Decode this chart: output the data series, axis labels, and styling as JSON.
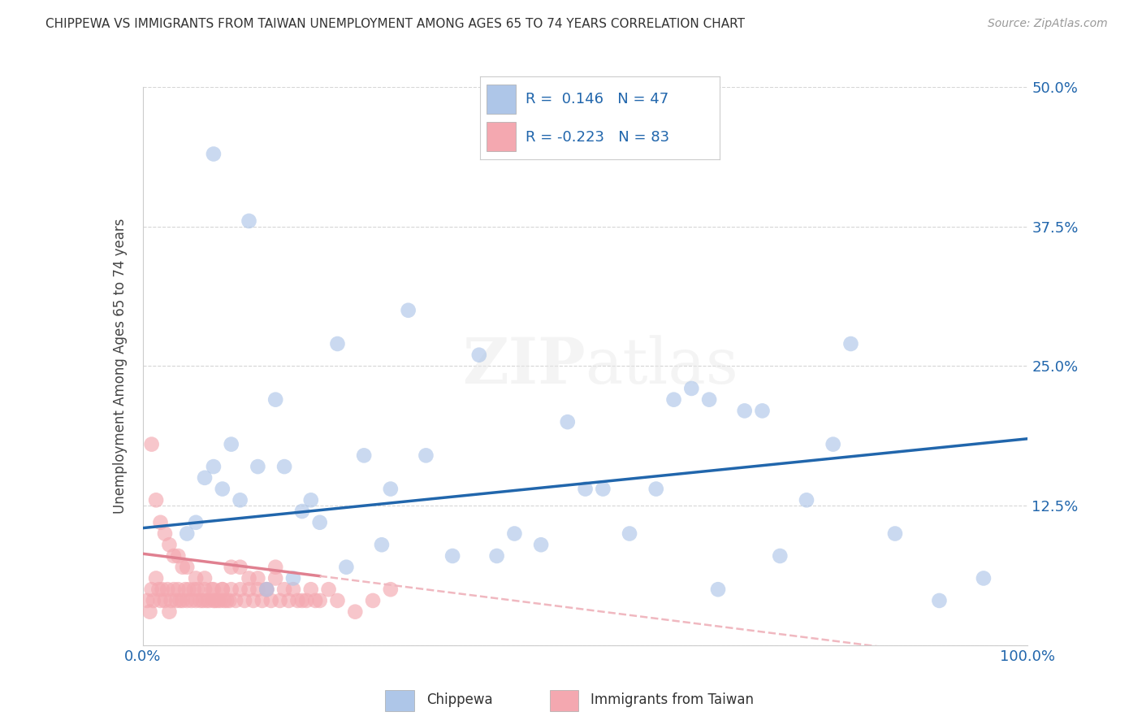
{
  "title": "CHIPPEWA VS IMMIGRANTS FROM TAIWAN UNEMPLOYMENT AMONG AGES 65 TO 74 YEARS CORRELATION CHART",
  "source": "Source: ZipAtlas.com",
  "ylabel": "Unemployment Among Ages 65 to 74 years",
  "xlim": [
    0.0,
    1.0
  ],
  "ylim": [
    0.0,
    0.5
  ],
  "xticks": [
    0.0,
    0.25,
    0.5,
    0.75,
    1.0
  ],
  "xticklabels": [
    "0.0%",
    "",
    "",
    "",
    "100.0%"
  ],
  "yticks": [
    0.0,
    0.125,
    0.25,
    0.375,
    0.5
  ],
  "yticklabels": [
    "",
    "12.5%",
    "25.0%",
    "37.5%",
    "50.0%"
  ],
  "grid_color": "#cccccc",
  "background_color": "#ffffff",
  "chippewa_color": "#aec6e8",
  "taiwan_color": "#f4a8b0",
  "chippewa_line_color": "#2166ac",
  "taiwan_line_color": "#e08090",
  "taiwan_line_dashed_color": "#f0b8c0",
  "legend_R1": "0.146",
  "legend_N1": "47",
  "legend_R2": "-0.223",
  "legend_N2": "83",
  "chippewa_scatter_x": [
    0.08,
    0.12,
    0.3,
    0.15,
    0.1,
    0.07,
    0.22,
    0.18,
    0.06,
    0.25,
    0.13,
    0.09,
    0.11,
    0.2,
    0.14,
    0.32,
    0.28,
    0.38,
    0.5,
    0.6,
    0.62,
    0.7,
    0.8,
    0.9,
    0.95,
    0.45,
    0.55,
    0.65,
    0.75,
    0.85,
    0.4,
    0.35,
    0.42,
    0.48,
    0.52,
    0.58,
    0.68,
    0.78,
    0.17,
    0.19,
    0.23,
    0.05,
    0.27,
    0.64,
    0.72,
    0.08,
    0.16
  ],
  "chippewa_scatter_y": [
    0.44,
    0.38,
    0.3,
    0.22,
    0.18,
    0.15,
    0.27,
    0.12,
    0.11,
    0.17,
    0.16,
    0.14,
    0.13,
    0.11,
    0.05,
    0.17,
    0.14,
    0.26,
    0.14,
    0.22,
    0.23,
    0.21,
    0.27,
    0.04,
    0.06,
    0.09,
    0.1,
    0.05,
    0.13,
    0.1,
    0.08,
    0.08,
    0.1,
    0.2,
    0.14,
    0.14,
    0.21,
    0.18,
    0.06,
    0.13,
    0.07,
    0.1,
    0.09,
    0.22,
    0.08,
    0.16,
    0.16
  ],
  "taiwan_scatter_x": [
    0.005,
    0.008,
    0.01,
    0.012,
    0.015,
    0.018,
    0.02,
    0.022,
    0.025,
    0.028,
    0.03,
    0.032,
    0.035,
    0.038,
    0.04,
    0.042,
    0.045,
    0.048,
    0.05,
    0.052,
    0.055,
    0.058,
    0.06,
    0.062,
    0.065,
    0.068,
    0.07,
    0.072,
    0.075,
    0.078,
    0.08,
    0.082,
    0.085,
    0.088,
    0.09,
    0.092,
    0.095,
    0.098,
    0.1,
    0.105,
    0.11,
    0.115,
    0.12,
    0.125,
    0.13,
    0.135,
    0.14,
    0.145,
    0.15,
    0.155,
    0.16,
    0.165,
    0.17,
    0.175,
    0.18,
    0.185,
    0.19,
    0.195,
    0.2,
    0.21,
    0.22,
    0.24,
    0.26,
    0.28,
    0.01,
    0.015,
    0.02,
    0.025,
    0.03,
    0.035,
    0.04,
    0.045,
    0.05,
    0.06,
    0.07,
    0.08,
    0.09,
    0.1,
    0.11,
    0.12,
    0.13,
    0.14,
    0.15
  ],
  "taiwan_scatter_y": [
    0.04,
    0.03,
    0.05,
    0.04,
    0.06,
    0.05,
    0.04,
    0.05,
    0.04,
    0.05,
    0.03,
    0.04,
    0.05,
    0.04,
    0.05,
    0.04,
    0.04,
    0.05,
    0.04,
    0.05,
    0.04,
    0.05,
    0.04,
    0.05,
    0.04,
    0.04,
    0.05,
    0.04,
    0.04,
    0.05,
    0.04,
    0.04,
    0.04,
    0.04,
    0.05,
    0.04,
    0.04,
    0.04,
    0.05,
    0.04,
    0.05,
    0.04,
    0.05,
    0.04,
    0.05,
    0.04,
    0.05,
    0.04,
    0.06,
    0.04,
    0.05,
    0.04,
    0.05,
    0.04,
    0.04,
    0.04,
    0.05,
    0.04,
    0.04,
    0.05,
    0.04,
    0.03,
    0.04,
    0.05,
    0.18,
    0.13,
    0.11,
    0.1,
    0.09,
    0.08,
    0.08,
    0.07,
    0.07,
    0.06,
    0.06,
    0.05,
    0.05,
    0.07,
    0.07,
    0.06,
    0.06,
    0.05,
    0.07
  ]
}
